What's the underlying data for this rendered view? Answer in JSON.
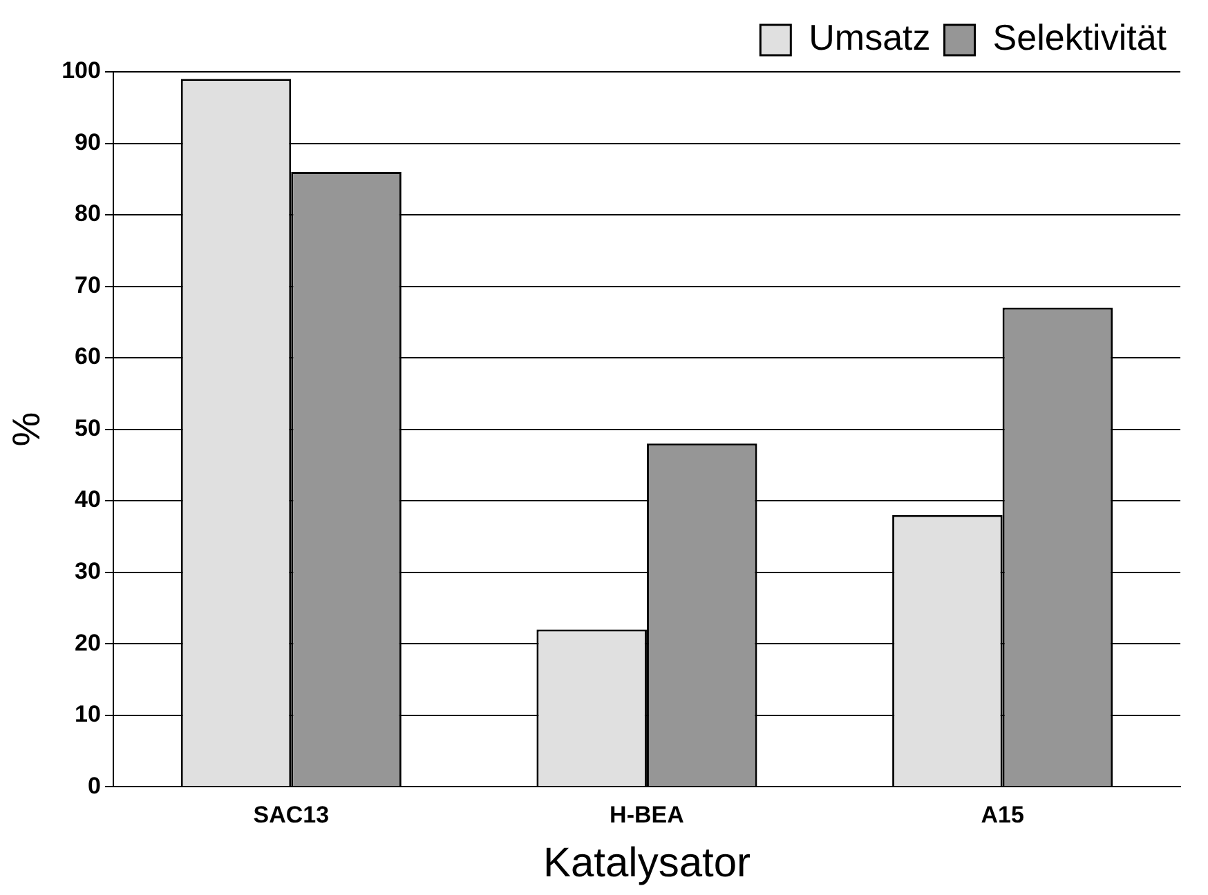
{
  "chart_data": {
    "type": "bar",
    "xlabel": "Katalysator",
    "ylabel": "%",
    "categories": [
      "SAC13",
      "H-BEA",
      "A15"
    ],
    "series": [
      {
        "name": "Umsatz",
        "color": "#e0e0e0",
        "values": [
          99,
          22,
          38
        ]
      },
      {
        "name": "Selektivität",
        "color": "#969696",
        "values": [
          86,
          48,
          67
        ]
      }
    ],
    "ylim": [
      0,
      100
    ],
    "yticks": [
      0,
      10,
      20,
      30,
      40,
      50,
      60,
      70,
      80,
      90,
      100
    ],
    "grid": "y",
    "legend": "top right"
  }
}
